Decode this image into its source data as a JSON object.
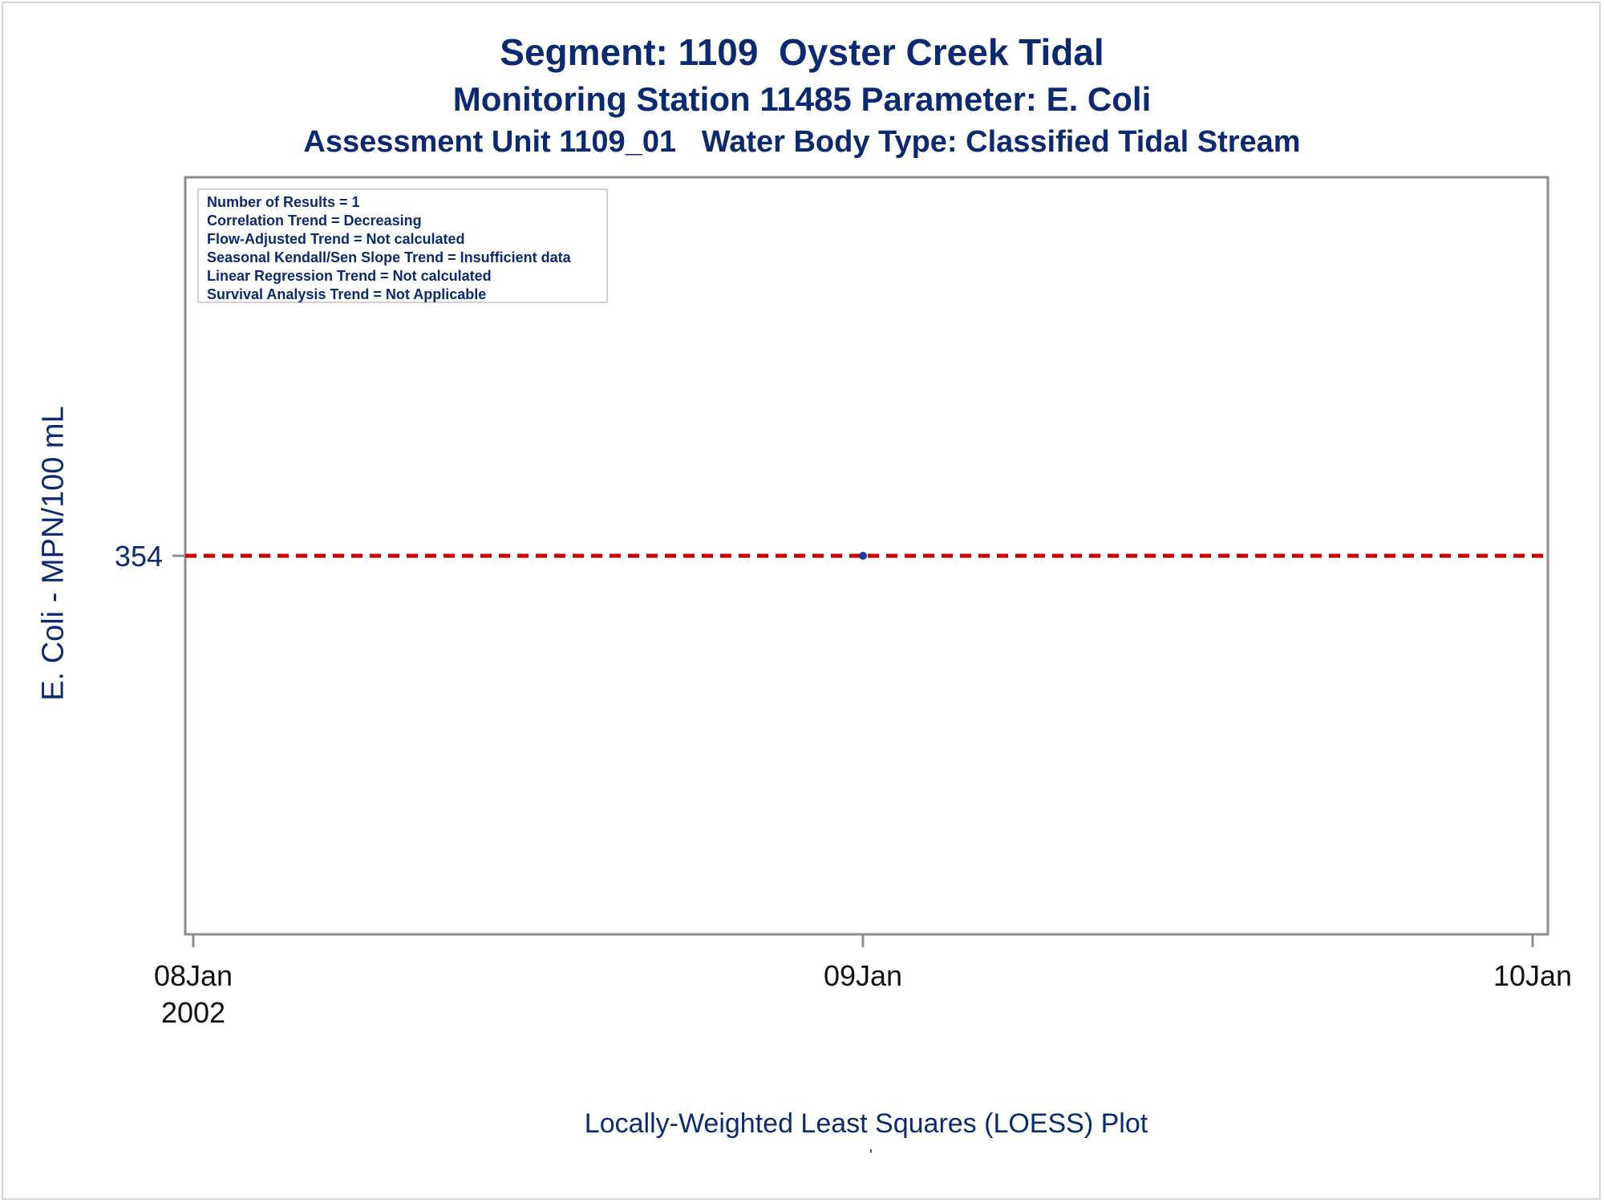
{
  "titles": {
    "line1": "Segment: 1109  Oyster Creek Tidal",
    "line2": "Monitoring Station 11485 Parameter: E. Coli",
    "line3": "Assessment Unit 1109_01   Water Body Type: Classified Tidal Stream"
  },
  "info_box": [
    "Number of Results = 1",
    "Correlation Trend = Decreasing",
    "Flow-Adjusted Trend = Not calculated",
    "Seasonal Kendall/Sen Slope Trend = Insufficient data",
    "Linear Regression Trend = Not calculated",
    "Survival Analysis Trend = Not Applicable"
  ],
  "footnote": "Locally-Weighted Least Squares (LOESS) Plot",
  "footnote_mark": "'",
  "colors": {
    "text": "#0b2a72",
    "axis": "#8c8c8c",
    "reference_line": "#cc0000",
    "point": "#1f3fa0"
  },
  "chart_data": {
    "type": "scatter",
    "xlabel": "",
    "ylabel": "E. Coli - MPN/100 mL",
    "x_ticks": [
      {
        "date": "2002-01-08",
        "label": "08Jan",
        "sublabel": "2002"
      },
      {
        "date": "2002-01-09",
        "label": "09Jan",
        "sublabel": ""
      },
      {
        "date": "2002-01-10",
        "label": "10Jan",
        "sublabel": ""
      }
    ],
    "xlim": [
      "2002-01-08",
      "2002-01-10"
    ],
    "y_ticks": [
      354
    ],
    "ylim": [
      0,
      708
    ],
    "points": [
      {
        "x": "2002-01-09",
        "y": 354
      }
    ],
    "reference_lines": [
      {
        "y": 354,
        "style": "dashed"
      }
    ],
    "grid": false,
    "legend": "none"
  }
}
